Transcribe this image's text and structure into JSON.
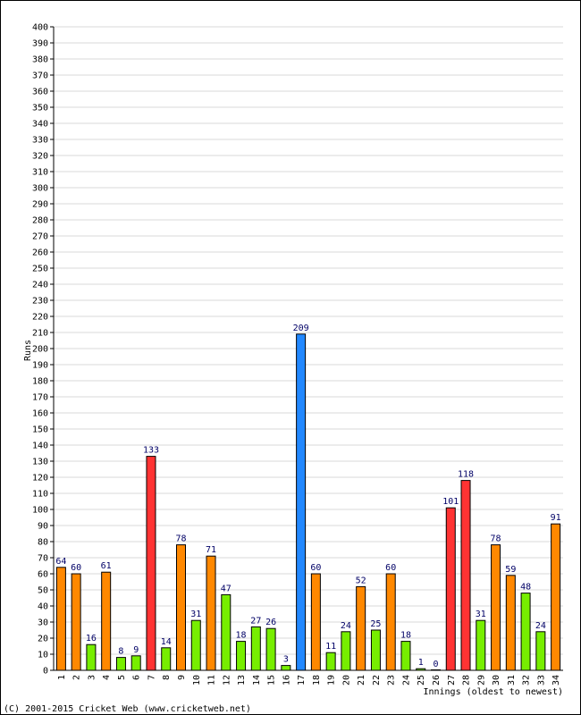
{
  "chart_data": {
    "type": "bar",
    "ylabel": "Runs",
    "xlabel": "Innings (oldest to newest)",
    "ylim": [
      0,
      400
    ],
    "ytick_step": 10,
    "grid": true,
    "categories": [
      "1",
      "2",
      "3",
      "4",
      "5",
      "6",
      "7",
      "8",
      "9",
      "10",
      "11",
      "12",
      "13",
      "14",
      "15",
      "16",
      "17",
      "18",
      "19",
      "20",
      "21",
      "22",
      "23",
      "24",
      "25",
      "26",
      "27",
      "28",
      "29",
      "30",
      "31",
      "32",
      "33",
      "34"
    ],
    "values": [
      64,
      60,
      16,
      61,
      8,
      9,
      133,
      14,
      78,
      31,
      71,
      47,
      18,
      27,
      26,
      3,
      209,
      60,
      11,
      24,
      52,
      25,
      60,
      18,
      1,
      0,
      101,
      118,
      31,
      78,
      59,
      48,
      24,
      91
    ],
    "colors": [
      "#ff8800",
      "#ff8800",
      "#77ee00",
      "#ff8800",
      "#77ee00",
      "#77ee00",
      "#ff3333",
      "#77ee00",
      "#ff8800",
      "#77ee00",
      "#ff8800",
      "#77ee00",
      "#77ee00",
      "#77ee00",
      "#77ee00",
      "#77ee00",
      "#2288ff",
      "#ff8800",
      "#77ee00",
      "#77ee00",
      "#ff8800",
      "#77ee00",
      "#ff8800",
      "#77ee00",
      "#77ee00",
      "#77ee00",
      "#ff3333",
      "#ff3333",
      "#77ee00",
      "#ff8800",
      "#ff8800",
      "#77ee00",
      "#77ee00",
      "#ff8800"
    ]
  },
  "copyright": "(C) 2001-2015 Cricket Web (www.cricketweb.net)"
}
